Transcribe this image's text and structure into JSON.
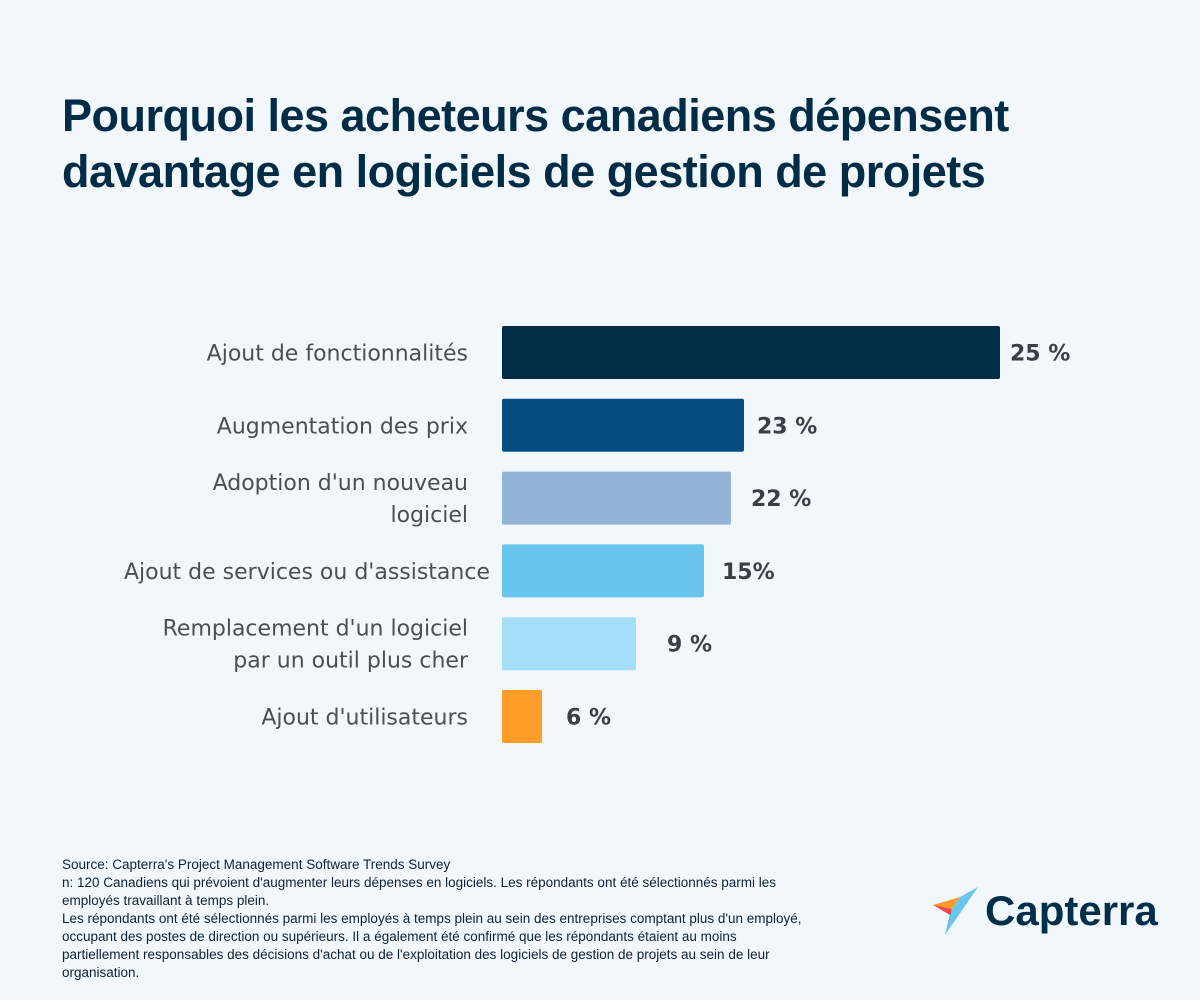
{
  "title": "Pourquoi les acheteurs canadiens dépensent davantage en logiciels de gestion de projets",
  "chart_data": {
    "type": "bar",
    "orientation": "horizontal",
    "title": "Pourquoi les acheteurs canadiens dépensent davantage en logiciels de gestion de projets",
    "categories": [
      [
        "Ajout de fonctionnalités"
      ],
      [
        "Augmentation des prix"
      ],
      [
        "Adoption d'un nouveau",
        "logiciel"
      ],
      [
        "Ajout de services ou d'assistance"
      ],
      [
        "Remplacement d'un logiciel",
        "par un outil plus cher"
      ],
      [
        "Ajout d'utilisateurs"
      ]
    ],
    "values": [
      25,
      23,
      22,
      15,
      9,
      6
    ],
    "value_labels": [
      "25 %",
      "23 %",
      "22 %",
      "15%",
      "9 %",
      "6 %"
    ],
    "unit": "%",
    "colors": [
      "#002c45",
      "#054d80",
      "#94b3d9",
      "#67c5ee",
      "#a4def8",
      "#ff9d28"
    ],
    "grid": false,
    "legend": "none"
  },
  "notes": [
    "Source: Capterra's Project Management Software Trends Survey",
    "n: 120 Canadiens qui prévoient d'augmenter leurs dépenses en logiciels. Les répondants ont été sélectionnés parmi les employés travaillant à temps plein.",
    "Les répondants ont été sélectionnés parmi les employés à temps plein au sein des entreprises comptant plus d'un employé, occupant des postes de direction ou supérieurs. Il a également été confirmé que les répondants étaient au moins partiellement responsables des décisions d'achat ou de l'exploitation des logiciels de gestion de projets au sein de leur organisation."
  ],
  "logo": {
    "text": "Capterra",
    "icon": "capterra-arrow-logo"
  }
}
